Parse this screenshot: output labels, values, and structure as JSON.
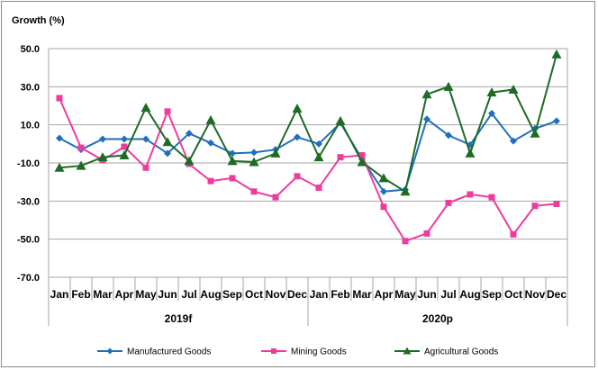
{
  "chart_data": {
    "type": "line",
    "ylabel": "Growth (%)",
    "ylim": [
      -70,
      50
    ],
    "yticks": [
      "50.0",
      "30.0",
      "10.0",
      "-10.0",
      "-30.0",
      "-50.0",
      "-70.0"
    ],
    "ytick_values": [
      50,
      30,
      10,
      -10,
      -30,
      -50,
      -70
    ],
    "categories": [
      "Jan",
      "Feb",
      "Mar",
      "Apr",
      "May",
      "Jun",
      "Jul",
      "Aug",
      "Sep",
      "Oct",
      "Nov",
      "Dec",
      "Jan",
      "Feb",
      "Mar",
      "Apr",
      "May",
      "Jun",
      "Jul",
      "Aug",
      "Sep",
      "Oct",
      "Nov",
      "Dec"
    ],
    "groups": [
      {
        "label": "2019f",
        "start": 0,
        "end": 11
      },
      {
        "label": "2020p",
        "start": 12,
        "end": 23
      }
    ],
    "grid": true,
    "legend_position": "bottom",
    "series": [
      {
        "name": "Manufactured Goods",
        "color": "#1f6fbf",
        "marker": "diamond",
        "values": [
          3,
          -3,
          2.5,
          2.5,
          2.5,
          -5,
          5.5,
          0.5,
          -5,
          -4.5,
          -3,
          3.5,
          0,
          11,
          -8,
          -25,
          -24,
          13,
          4.5,
          -0.5,
          16,
          1.5,
          8,
          12
        ]
      },
      {
        "name": "Mining Goods",
        "color": "#ee3c9e",
        "marker": "square",
        "values": [
          24,
          -2,
          -8.5,
          -1.5,
          -12.5,
          17,
          -10.5,
          -19.5,
          -18,
          -25,
          -28,
          -17,
          -23,
          -7,
          -6,
          -33,
          -51,
          -47,
          -31,
          -26.5,
          -28,
          -47.5,
          -32.5,
          -31.5
        ]
      },
      {
        "name": "Agricultural Goods",
        "color": "#1e6b26",
        "marker": "triangle",
        "values": [
          -12.5,
          -11.5,
          -7,
          -6,
          19,
          1,
          -9,
          12.5,
          -9,
          -9.5,
          -5,
          18.5,
          -7,
          12,
          -9.5,
          -18,
          -25,
          26,
          30,
          -5,
          27,
          28.5,
          5.5,
          47
        ]
      }
    ]
  }
}
